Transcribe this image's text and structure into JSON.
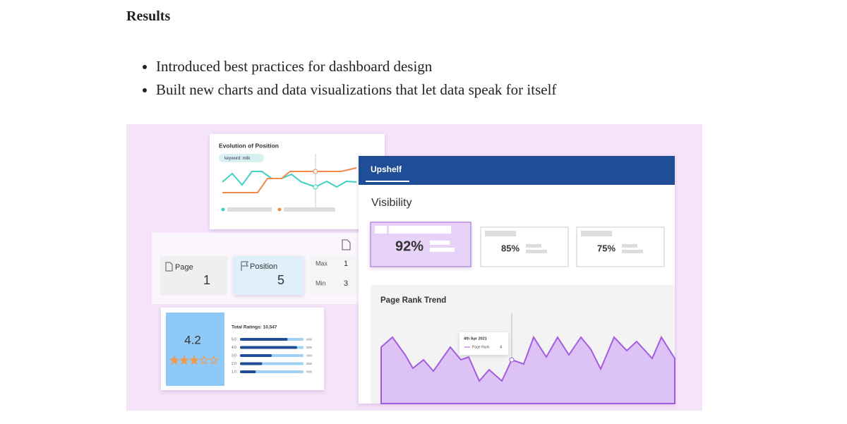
{
  "header": {
    "title": "Results"
  },
  "bullets": [
    "Introduced best practices for dashboard design",
    "Built new charts and data visualizations that let data speak for itself"
  ],
  "illustration": {
    "position_chart": {
      "title": "Evolution of Position",
      "filter": "keyword: milk"
    },
    "metrics": {
      "page": {
        "label": "Page",
        "value": 1
      },
      "position": {
        "label": "Position",
        "value": 5
      },
      "max": {
        "label": "Max",
        "value": 1
      },
      "min": {
        "label": "Min",
        "value": 3
      }
    },
    "ratings": {
      "average": 4.2,
      "total": "Total Ratings: 10,547",
      "levels": [
        "5.0",
        "4.0",
        "3.0",
        "2.0",
        "1.0"
      ]
    },
    "app": {
      "brand": "Upshelf",
      "section": "Visibility",
      "cards": [
        "92%",
        "85%",
        "75%"
      ],
      "trend": {
        "title": "Page Rank Trend",
        "tooltip": {
          "date": "4th Apr 2021",
          "series": "Page Rank",
          "value": 4
        }
      }
    }
  }
}
